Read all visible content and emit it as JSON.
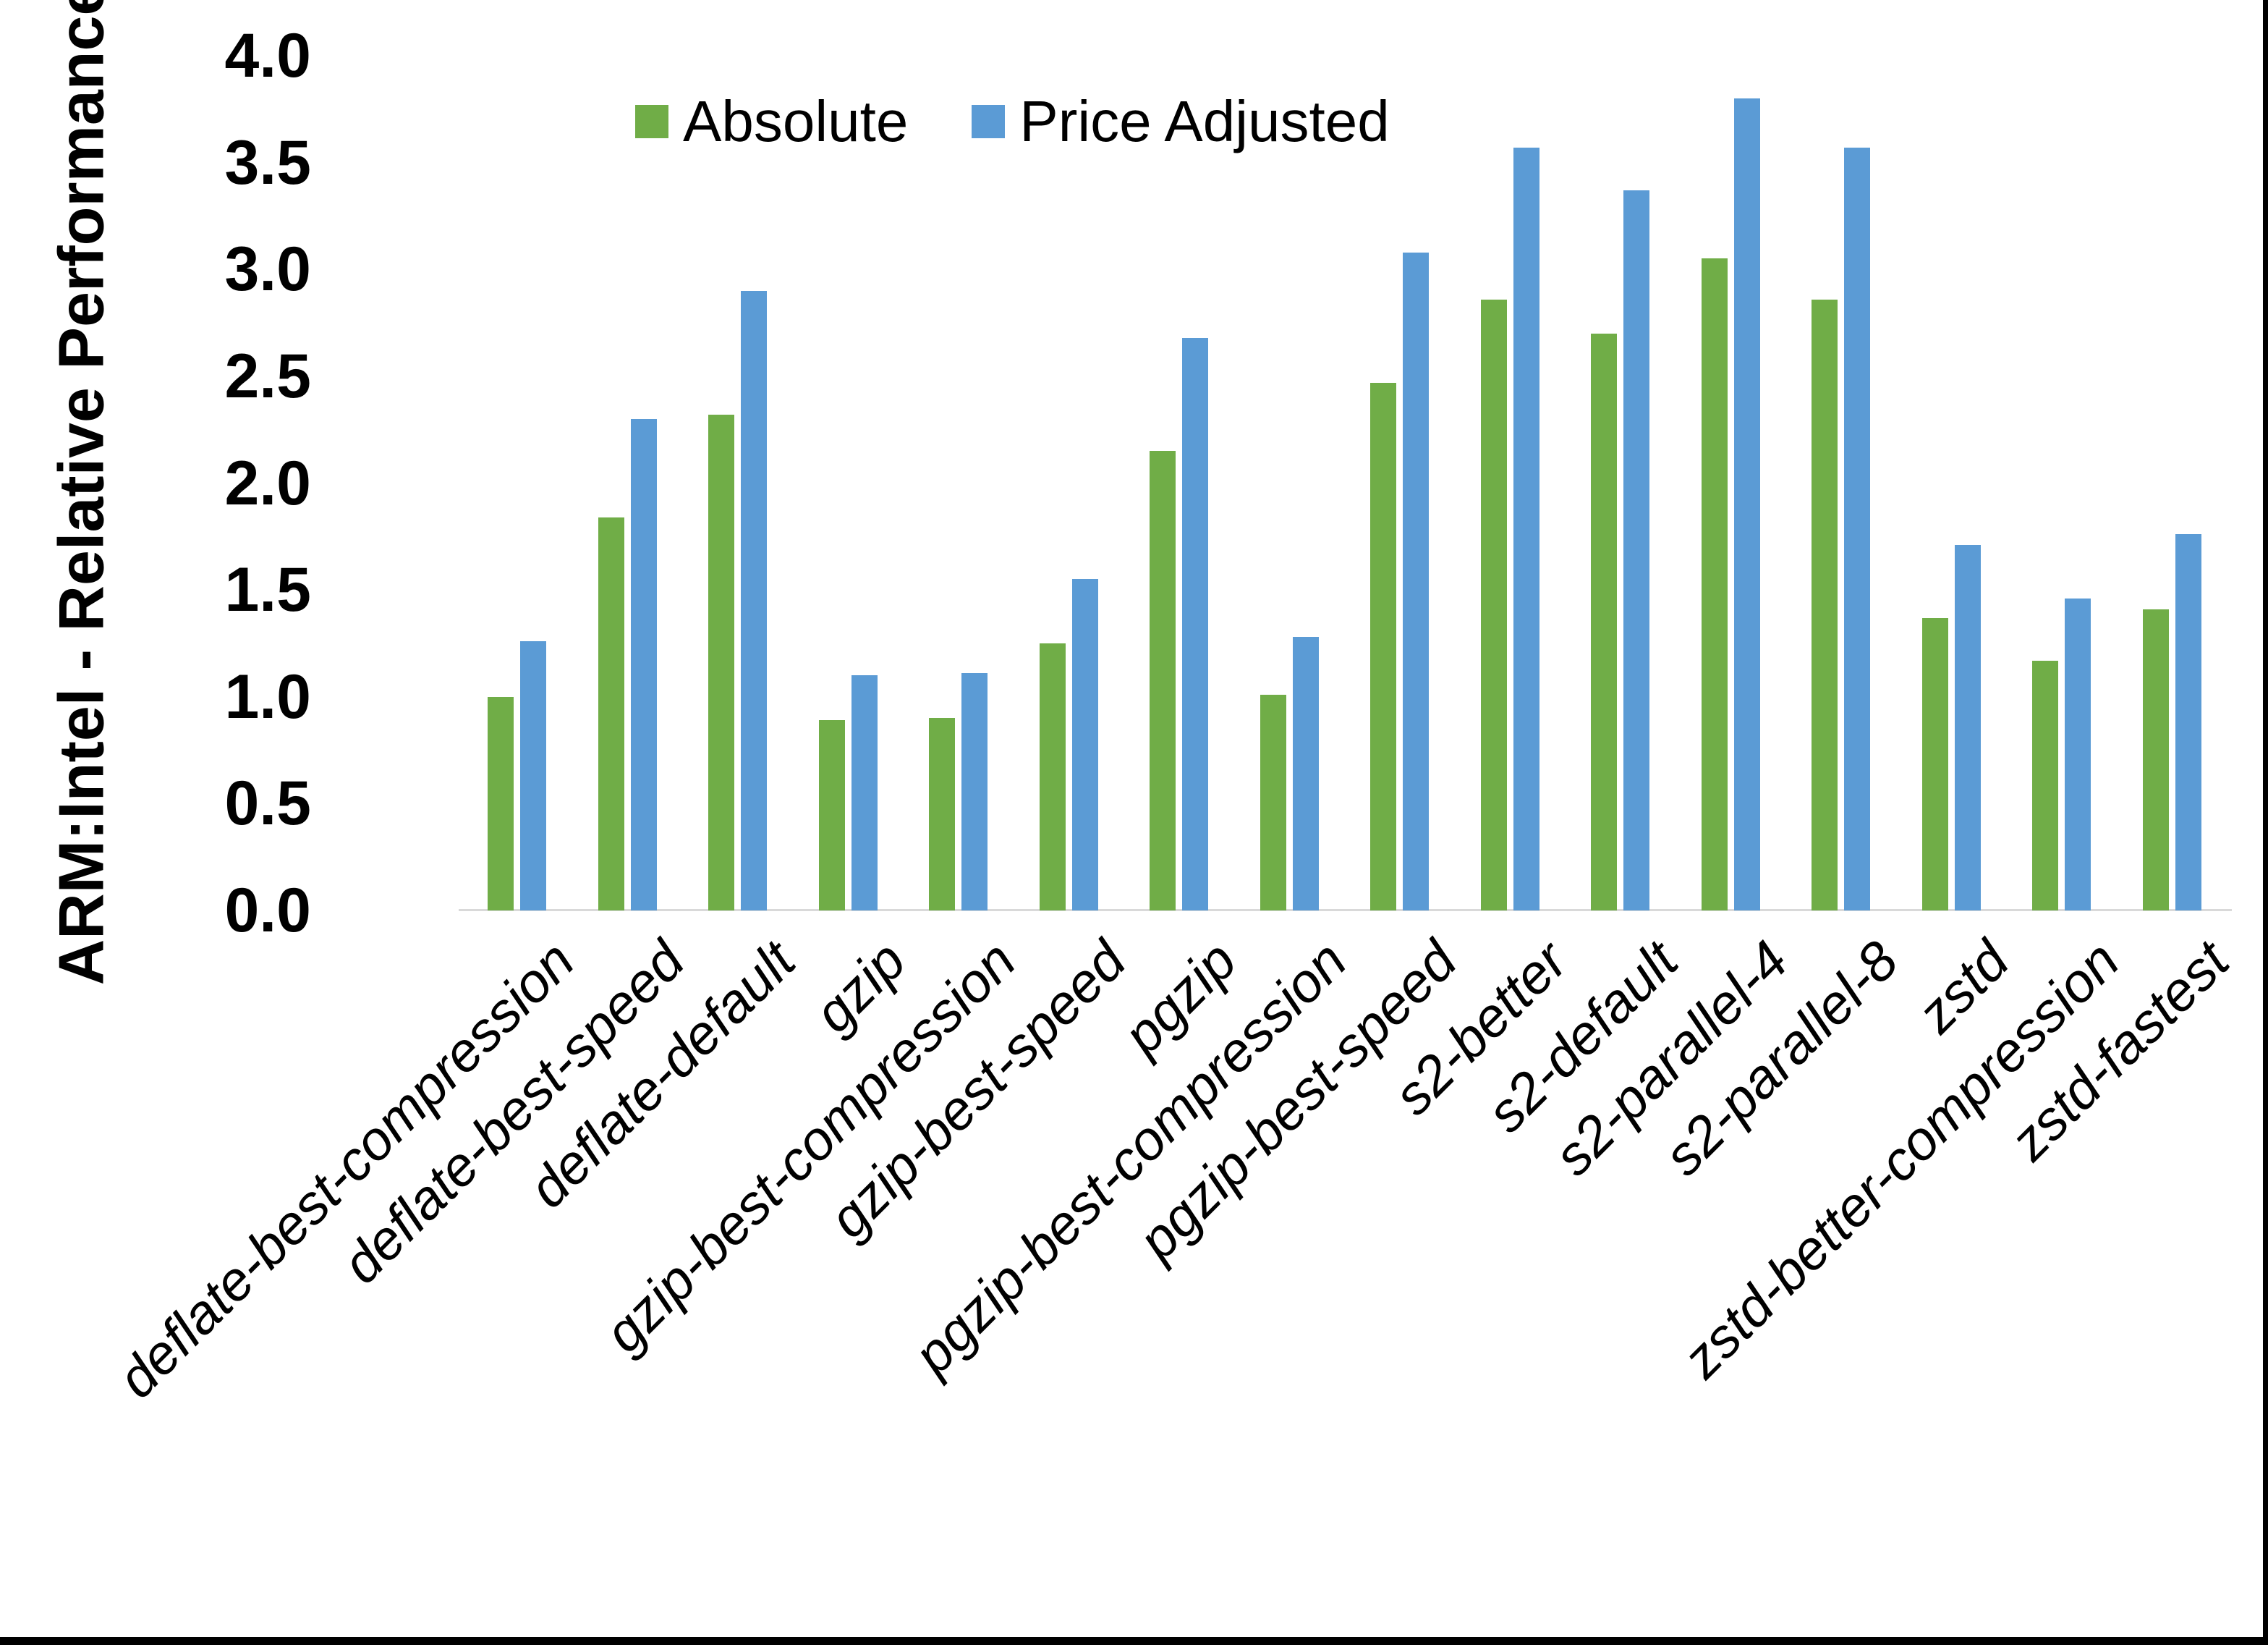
{
  "figure": {
    "background": "#ffffff",
    "edge_bar_color": "#000000"
  },
  "legend": {
    "items": [
      {
        "label": "Absolute",
        "color": "#70AD47"
      },
      {
        "label": "Price Adjusted",
        "color": "#5B9BD5"
      }
    ]
  },
  "chart_data": {
    "type": "bar",
    "title": "",
    "xlabel": "",
    "ylabel": "ARM:Intel - Relative Performance",
    "ylim": [
      0,
      4
    ],
    "ytick_step": 0.5,
    "yticks": [
      "0.0",
      "0.5",
      "1.0",
      "1.5",
      "2.0",
      "2.5",
      "3.0",
      "3.5",
      "4.0"
    ],
    "grid": false,
    "legend_position": "top-center",
    "axis_line_color": "#D9D9D9",
    "text_color": "#000000",
    "categories": [
      "deflate-best-compression",
      "deflate-best-speed",
      "deflate-default",
      "gzip",
      "gzip-best-compression",
      "gzip-best-speed",
      "pgzip",
      "pgzip-best-compression",
      "pgzip-best-speed",
      "s2-better",
      "s2-default",
      "s2-parallel-4",
      "s2-parallel-8",
      "zstd",
      "zstd-better-compression",
      "zstd-fastest"
    ],
    "series": [
      {
        "name": "Absolute",
        "color": "#70AD47",
        "values": [
          1.0,
          1.84,
          2.32,
          0.89,
          0.9,
          1.25,
          2.15,
          1.01,
          2.47,
          2.86,
          2.7,
          3.05,
          2.86,
          1.37,
          1.17,
          1.41
        ]
      },
      {
        "name": "Price Adjusted",
        "color": "#5B9BD5",
        "values": [
          1.26,
          2.3,
          2.9,
          1.1,
          1.11,
          1.55,
          2.68,
          1.28,
          3.08,
          3.57,
          3.37,
          3.8,
          3.57,
          1.71,
          1.46,
          1.76
        ]
      }
    ]
  }
}
